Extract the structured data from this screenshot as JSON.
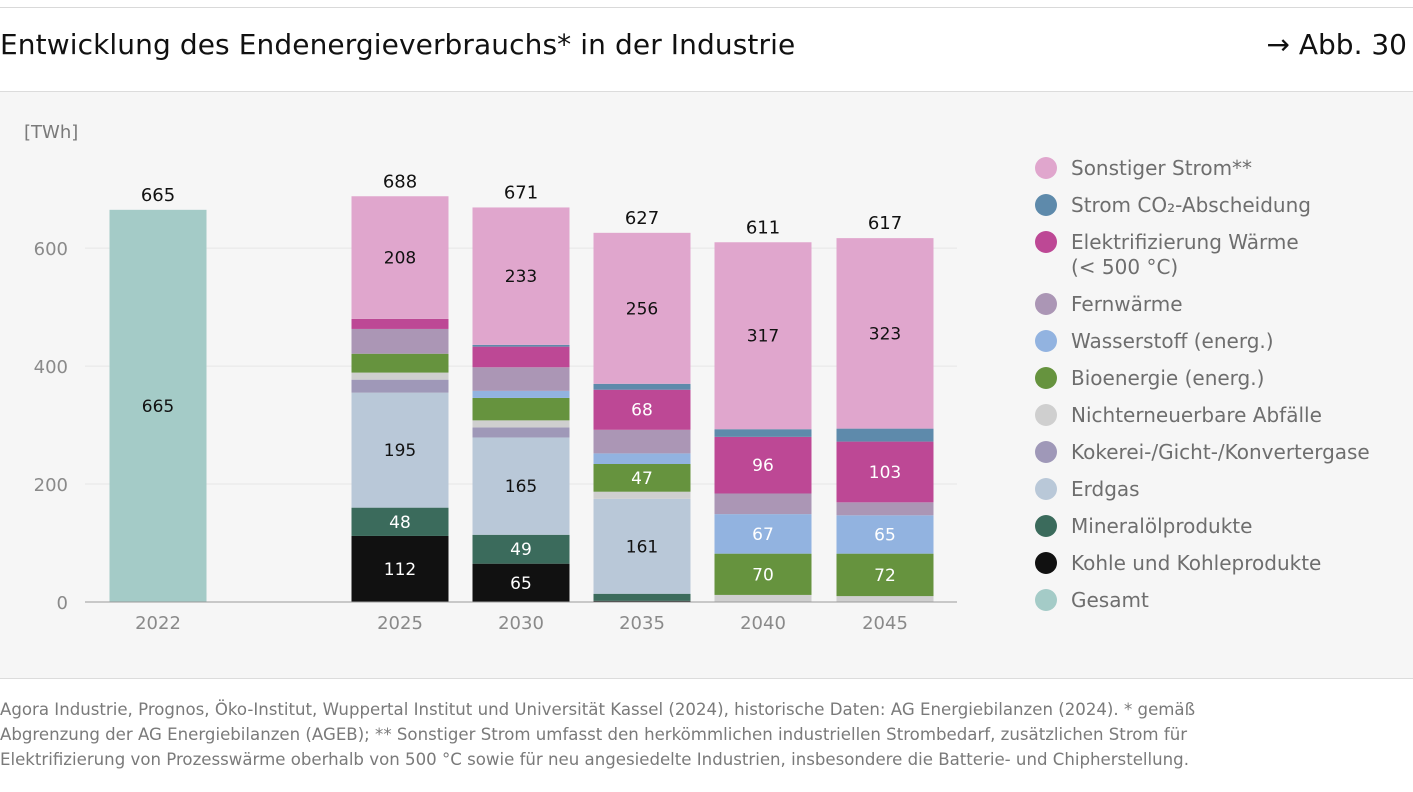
{
  "header": {
    "title": "Entwicklung des Endenergieverbrauchs* in der Industrie",
    "figure_ref": "→ Abb. 30"
  },
  "chart_data": {
    "type": "bar",
    "stacked": true,
    "ylabel": "[TWh]",
    "ylim": [
      0,
      700
    ],
    "yticks": [
      0,
      200,
      400,
      600
    ],
    "grid": true,
    "categories": [
      "2022",
      "2025",
      "2030",
      "2035",
      "2040",
      "2045"
    ],
    "totals": [
      665,
      688,
      671,
      627,
      611,
      617
    ],
    "series": [
      {
        "name": "Kohle und Kohleprodukte",
        "color": "#111111",
        "values": [
          0,
          112,
          65,
          2,
          0,
          0
        ],
        "labels": [
          null,
          "112",
          "65",
          null,
          null,
          null
        ]
      },
      {
        "name": "Mineralölprodukte",
        "color": "#3b6b5c",
        "values": [
          0,
          48,
          49,
          12,
          0,
          0
        ],
        "labels": [
          null,
          "48",
          "49",
          null,
          null,
          null
        ]
      },
      {
        "name": "Nichterneuerbare Abfälle",
        "color": "#cfcfcf",
        "values": [
          0,
          0,
          0,
          0,
          12,
          10
        ],
        "labels": [
          null,
          null,
          null,
          null,
          null,
          null
        ]
      },
      {
        "name": "Bioenergie (energ.)",
        "color": "#66933e",
        "values": [
          0,
          0,
          0,
          0,
          70,
          72
        ],
        "labels": [
          null,
          null,
          null,
          null,
          "70",
          "72"
        ]
      },
      {
        "name": "Wasserstoff (energ.)",
        "color": "#92b3e0",
        "values": [
          0,
          0,
          0,
          0,
          67,
          65
        ],
        "labels": [
          null,
          null,
          null,
          null,
          "67",
          "65"
        ]
      },
      {
        "name": "Erdgas",
        "color": "#b9c8d8",
        "values": [
          0,
          195,
          165,
          161,
          0,
          0
        ],
        "labels": [
          null,
          "195",
          "165",
          "161",
          null,
          null
        ]
      },
      {
        "name": "Kokerei-/Gicht-/Konvertergase",
        "color": "#9f98b8",
        "values": [
          0,
          22,
          17,
          0,
          0,
          0
        ],
        "labels": [
          null,
          null,
          null,
          null,
          null,
          null
        ]
      },
      {
        "name": "Nichterneuerbare Abfälle",
        "color": "#cfcfcf",
        "values": [
          0,
          12,
          12,
          12,
          0,
          0
        ],
        "labels": [
          null,
          null,
          null,
          null,
          null,
          null
        ]
      },
      {
        "name": "Bioenergie (energ.)",
        "color": "#66933e",
        "values": [
          0,
          32,
          38,
          47,
          0,
          0
        ],
        "labels": [
          null,
          null,
          null,
          "47",
          null,
          null
        ]
      },
      {
        "name": "Wasserstoff (energ.)",
        "color": "#92b3e0",
        "values": [
          0,
          0,
          12,
          18,
          0,
          0
        ],
        "labels": [
          null,
          null,
          null,
          null,
          null,
          null
        ]
      },
      {
        "name": "Fernwärme",
        "color": "#ab96b5",
        "values": [
          0,
          42,
          40,
          40,
          35,
          22
        ],
        "labels": [
          null,
          null,
          null,
          null,
          null,
          null
        ]
      },
      {
        "name": "Elektrifizierung Wärme (< 500 °C)",
        "color": "#bd4895",
        "values": [
          0,
          17,
          35,
          68,
          96,
          103
        ],
        "labels": [
          null,
          null,
          null,
          "68",
          "96",
          "103"
        ]
      },
      {
        "name": "Strom CO₂-Abscheidung",
        "color": "#5e8aab",
        "values": [
          0,
          0,
          3,
          10,
          13,
          22
        ],
        "labels": [
          null,
          null,
          null,
          null,
          null,
          null
        ]
      },
      {
        "name": "Sonstiger Strom**",
        "color": "#e0a6cd",
        "values": [
          0,
          208,
          233,
          256,
          317,
          323
        ],
        "labels": [
          null,
          "208",
          "233",
          "256",
          "317",
          "323"
        ]
      },
      {
        "name": "Gesamt",
        "color": "#a4cbc7",
        "values": [
          665,
          0,
          0,
          0,
          0,
          0
        ],
        "labels": [
          "665",
          null,
          null,
          null,
          null,
          null
        ]
      }
    ],
    "legend": [
      {
        "label": "Sonstiger Strom**",
        "color": "#e0a6cd"
      },
      {
        "label": "Strom CO₂-Abscheidung",
        "color": "#5e8aab"
      },
      {
        "label": "Elektrifizierung Wärme",
        "label2": "(< 500 °C)",
        "color": "#bd4895"
      },
      {
        "label": "Fernwärme",
        "color": "#ab96b5"
      },
      {
        "label": "Wasserstoff (energ.)",
        "color": "#92b3e0"
      },
      {
        "label": "Bioenergie (energ.)",
        "color": "#66933e"
      },
      {
        "label": "Nichterneuerbare Abfälle",
        "color": "#cfcfcf"
      },
      {
        "label": "Kokerei-/Gicht-/Konvertergase",
        "color": "#9f98b8"
      },
      {
        "label": "Erdgas",
        "color": "#b9c8d8"
      },
      {
        "label": "Mineralölprodukte",
        "color": "#3b6b5c"
      },
      {
        "label": "Kohle und Kohleprodukte",
        "color": "#111111"
      },
      {
        "label": "Gesamt",
        "color": "#a4cbc7"
      }
    ],
    "legend_position": "right"
  },
  "source": {
    "line1": "Agora Industrie, Prognos, Öko-Institut, Wuppertal Institut und Universität Kassel (2024), historische Daten: AG Energiebilanzen (2024). * gemäß",
    "line2": "Abgrenzung der AG Energiebilanzen (AGEB); ** Sonstiger Strom umfasst den herkömmlichen industriellen Strombedarf, zusätzlichen Strom für",
    "line3": "Elektrifizierung von Prozesswärme oberhalb von 500 °C sowie für neu angesiedelte Industrien, insbesondere die Batterie- und Chipherstellung."
  }
}
